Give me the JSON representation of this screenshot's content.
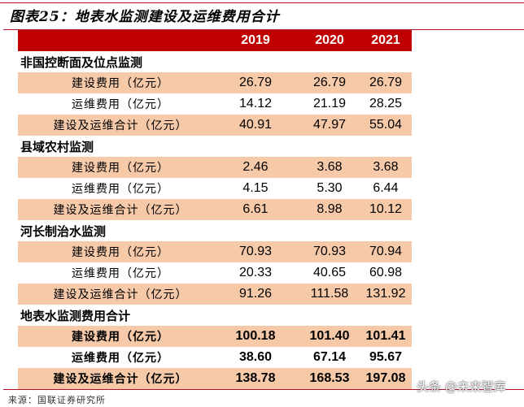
{
  "title": "图表25：地表水监测建设及运维费用合计",
  "header": {
    "label": "",
    "years": [
      "2019",
      "2020",
      "2021"
    ]
  },
  "sections": [
    {
      "name": "非国控断面及位点监测",
      "rows": [
        {
          "label": "建设费用（亿元）",
          "values": [
            "26.79",
            "26.79",
            "26.79"
          ]
        },
        {
          "label": "运维费用（亿元）",
          "values": [
            "14.12",
            "21.19",
            "28.25"
          ]
        },
        {
          "label": "建设及运维合计（亿元）",
          "values": [
            "40.91",
            "47.97",
            "55.04"
          ]
        }
      ]
    },
    {
      "name": "县域农村监测",
      "rows": [
        {
          "label": "建设费用（亿元）",
          "values": [
            "2.46",
            "3.68",
            "3.68"
          ]
        },
        {
          "label": "运维费用（亿元）",
          "values": [
            "4.15",
            "5.30",
            "6.44"
          ]
        },
        {
          "label": "建设及运维合计（亿元）",
          "values": [
            "6.61",
            "8.98",
            "10.12"
          ]
        }
      ]
    },
    {
      "name": "河长制治水监测",
      "rows": [
        {
          "label": "建设费用（亿元）",
          "values": [
            "70.93",
            "70.93",
            "70.94"
          ]
        },
        {
          "label": "运维费用（亿元）",
          "values": [
            "20.33",
            "40.65",
            "60.98"
          ]
        },
        {
          "label": "建设及运维合计（亿元）",
          "values": [
            "91.26",
            "111.58",
            "131.92"
          ]
        }
      ]
    },
    {
      "name": "地表水监测费用合计",
      "rows": [
        {
          "label": "建设费用（亿元）",
          "values": [
            "100.18",
            "101.40",
            "101.41"
          ]
        },
        {
          "label": "运维费用（亿元）",
          "values": [
            "38.60",
            "67.14",
            "95.67"
          ]
        },
        {
          "label": "建设及运维合计（亿元）",
          "values": [
            "138.78",
            "168.53",
            "197.08"
          ]
        }
      ]
    }
  ],
  "source": "来源：国联证券研究所",
  "watermark": "头条 @未来智库",
  "colors": {
    "header_bg": "#c00000",
    "row_shade": "#f6c9a9",
    "rule": "#b0102a"
  }
}
